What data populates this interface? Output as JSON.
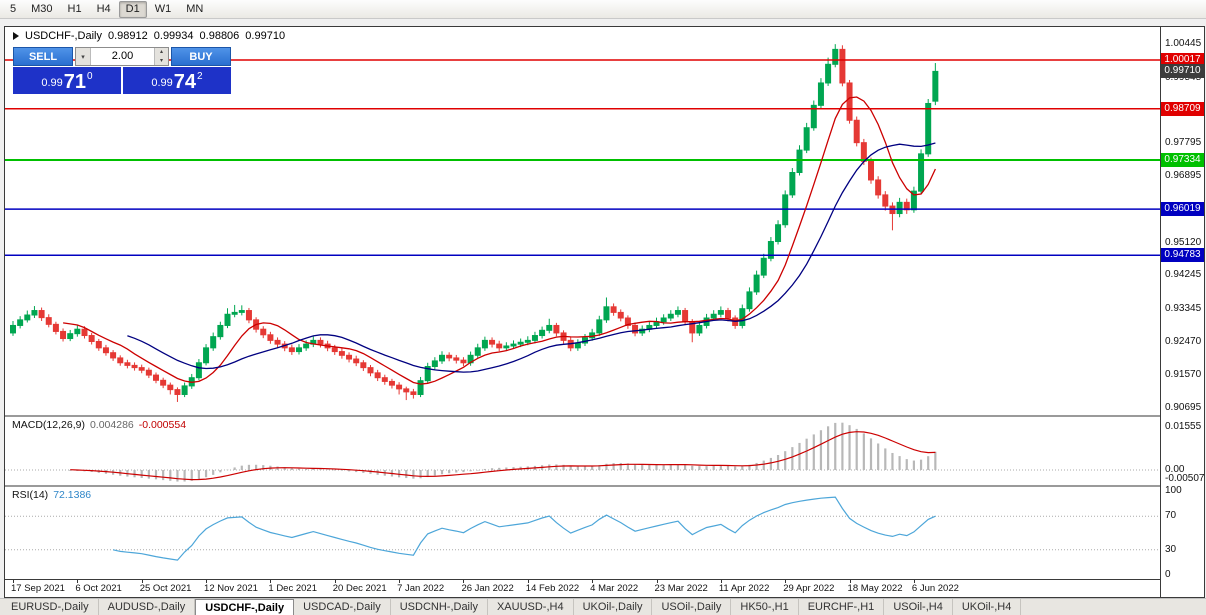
{
  "toolbar": {
    "timeframes": [
      {
        "label": "5",
        "active": false
      },
      {
        "label": "M30",
        "active": false
      },
      {
        "label": "H1",
        "active": false
      },
      {
        "label": "H4",
        "active": false
      },
      {
        "label": "D1",
        "active": true
      },
      {
        "label": "W1",
        "active": false
      },
      {
        "label": "MN",
        "active": false
      }
    ]
  },
  "chart": {
    "title": {
      "symbol": "USDCHF-,Daily",
      "o": "0.98912",
      "h": "0.99934",
      "l": "0.98806",
      "c": "0.99710"
    }
  },
  "trade_panel": {
    "sell_label": "SELL",
    "buy_label": "BUY",
    "volume": "2.00",
    "bid": {
      "prefix": "0.99",
      "pips": "71",
      "point": "0"
    },
    "ask": {
      "prefix": "0.99",
      "pips": "74",
      "point": "2"
    }
  },
  "price_axis": {
    "scale_labels": [
      "1.00445",
      "0.99545",
      "0.98645",
      "0.97795",
      "0.96895",
      "0.95995",
      "0.95120",
      "0.94245",
      "0.93345",
      "0.92470",
      "0.91570",
      "0.90695"
    ],
    "tags": [
      {
        "text": "1.00017",
        "bg": "#E00000",
        "line": true,
        "lw": 1.5
      },
      {
        "text": "0.99710",
        "bg": "#3C3C3C",
        "line": false,
        "lw": 0
      },
      {
        "text": "0.98709",
        "bg": "#E00000",
        "line": true,
        "lw": 1.5
      },
      {
        "text": "0.97334",
        "bg": "#00C000",
        "line": true,
        "lw": 2
      },
      {
        "text": "0.96019",
        "bg": "#0000C0",
        "line": true,
        "lw": 1.5
      },
      {
        "text": "0.94783",
        "bg": "#0000C0",
        "line": true,
        "lw": 1.5
      }
    ]
  },
  "macd_panel": {
    "name": "MACD(12,26,9)",
    "main_value": "0.004286",
    "signal_value": "-0.000554",
    "axis": [
      "0.01555",
      "0.00",
      "-0.00507"
    ]
  },
  "rsi_panel": {
    "name": "RSI(14)",
    "value": "72.1386",
    "axis": [
      "100",
      "70",
      "30",
      "0"
    ]
  },
  "time_axis": [
    "17 Sep 2021",
    "6 Oct 2021",
    "25 Oct 2021",
    "12 Nov 2021",
    "1 Dec 2021",
    "20 Dec 2021",
    "7 Jan 2022",
    "26 Jan 2022",
    "14 Feb 2022",
    "4 Mar 2022",
    "23 Mar 2022",
    "11 Apr 2022",
    "29 Apr 2022",
    "18 May 2022",
    "6 Jun 2022"
  ],
  "tabs": [
    {
      "label": "EURUSD-,Daily",
      "active": false
    },
    {
      "label": "AUDUSD-,Daily",
      "active": false
    },
    {
      "label": "USDCHF-,Daily",
      "active": true
    },
    {
      "label": "USDCAD-,Daily",
      "active": false
    },
    {
      "label": "USDCNH-,Daily",
      "active": false
    },
    {
      "label": "XAUUSD-,H4",
      "active": false
    },
    {
      "label": "UKOil-,Daily",
      "active": false
    },
    {
      "label": "USOil-,Daily",
      "active": false
    },
    {
      "label": "HK50-,H1",
      "active": false
    },
    {
      "label": "EURCHF-,H1",
      "active": false
    },
    {
      "label": "USOil-,H4",
      "active": false
    },
    {
      "label": "UKOil-,H4",
      "active": false
    }
  ],
  "chart_data": {
    "type": "candlestick",
    "symbol": "USDCHF",
    "period": "Daily",
    "current_ohlc": {
      "open": 0.98912,
      "high": 0.99934,
      "low": 0.98806,
      "close": 0.9971
    },
    "price_range": [
      0.905,
      1.009
    ],
    "colors": {
      "up": "#00A651",
      "down": "#E53935",
      "ma_fast": "#CC0000",
      "ma_slow": "#000080",
      "macd_hist": "#B8B8B8",
      "macd_signal": "#CC0000",
      "rsi": "#4DA6D9",
      "grid_dots": "#AAAAAA"
    },
    "ma": [
      {
        "period": 8,
        "color": "#CC0000"
      },
      {
        "period": 17,
        "color": "#000080"
      }
    ],
    "macd": {
      "fast": 12,
      "slow": 26,
      "signal": 9
    },
    "rsi": {
      "period": 14,
      "levels": [
        70,
        30
      ],
      "range": [
        0,
        100
      ]
    },
    "label_every_n_candles": 9,
    "candles": [
      [
        0.927,
        0.9302,
        0.9262,
        0.929
      ],
      [
        0.929,
        0.9315,
        0.9282,
        0.9305
      ],
      [
        0.9305,
        0.933,
        0.9298,
        0.9318
      ],
      [
        0.9318,
        0.9342,
        0.931,
        0.933
      ],
      [
        0.933,
        0.9338,
        0.9302,
        0.9311
      ],
      [
        0.9311,
        0.932,
        0.9285,
        0.9293
      ],
      [
        0.9293,
        0.93,
        0.9266,
        0.9274
      ],
      [
        0.9274,
        0.9282,
        0.9247,
        0.9255
      ],
      [
        0.9255,
        0.9278,
        0.9248,
        0.9268
      ],
      [
        0.9268,
        0.9292,
        0.926,
        0.928
      ],
      [
        0.928,
        0.9288,
        0.9255,
        0.9263
      ],
      [
        0.9263,
        0.927,
        0.9239,
        0.9247
      ],
      [
        0.9247,
        0.9254,
        0.9222,
        0.923
      ],
      [
        0.923,
        0.9238,
        0.9209,
        0.9217
      ],
      [
        0.9217,
        0.9224,
        0.9195,
        0.9203
      ],
      [
        0.9203,
        0.921,
        0.9182,
        0.919
      ],
      [
        0.919,
        0.9198,
        0.9175,
        0.9183
      ],
      [
        0.9183,
        0.9191,
        0.9169,
        0.9177
      ],
      [
        0.9177,
        0.9185,
        0.9162,
        0.917
      ],
      [
        0.917,
        0.9177,
        0.9149,
        0.9157
      ],
      [
        0.9157,
        0.9164,
        0.9135,
        0.9143
      ],
      [
        0.9143,
        0.915,
        0.9122,
        0.913
      ],
      [
        0.913,
        0.9137,
        0.9105,
        0.9118
      ],
      [
        0.9118,
        0.9124,
        0.9085,
        0.9105
      ],
      [
        0.9105,
        0.9137,
        0.9098,
        0.9128
      ],
      [
        0.9128,
        0.916,
        0.912,
        0.915
      ],
      [
        0.915,
        0.92,
        0.9143,
        0.919
      ],
      [
        0.919,
        0.924,
        0.9183,
        0.923
      ],
      [
        0.923,
        0.9271,
        0.9222,
        0.926
      ],
      [
        0.926,
        0.93,
        0.9252,
        0.929
      ],
      [
        0.929,
        0.9336,
        0.9283,
        0.932
      ],
      [
        0.932,
        0.9345,
        0.9312,
        0.9325
      ],
      [
        0.9325,
        0.9344,
        0.9317,
        0.933
      ],
      [
        0.933,
        0.9337,
        0.9296,
        0.9305
      ],
      [
        0.9305,
        0.9312,
        0.9271,
        0.928
      ],
      [
        0.928,
        0.9288,
        0.9256,
        0.9265
      ],
      [
        0.9265,
        0.9273,
        0.9241,
        0.925
      ],
      [
        0.925,
        0.9258,
        0.9231,
        0.924
      ],
      [
        0.924,
        0.9248,
        0.9221,
        0.923
      ],
      [
        0.923,
        0.9239,
        0.9211,
        0.922
      ],
      [
        0.922,
        0.924,
        0.9212,
        0.923
      ],
      [
        0.923,
        0.925,
        0.9222,
        0.924
      ],
      [
        0.924,
        0.9261,
        0.9232,
        0.925
      ],
      [
        0.925,
        0.9258,
        0.9231,
        0.924
      ],
      [
        0.924,
        0.9249,
        0.9221,
        0.923
      ],
      [
        0.923,
        0.9238,
        0.9211,
        0.922
      ],
      [
        0.922,
        0.9229,
        0.9201,
        0.921
      ],
      [
        0.921,
        0.9218,
        0.9191,
        0.92
      ],
      [
        0.92,
        0.9209,
        0.9181,
        0.919
      ],
      [
        0.919,
        0.9197,
        0.9168,
        0.9177
      ],
      [
        0.9177,
        0.9184,
        0.9154,
        0.9163
      ],
      [
        0.9163,
        0.9171,
        0.9141,
        0.915
      ],
      [
        0.915,
        0.9158,
        0.9131,
        0.914
      ],
      [
        0.914,
        0.9147,
        0.9121,
        0.913
      ],
      [
        0.913,
        0.9138,
        0.9105,
        0.912
      ],
      [
        0.912,
        0.9126,
        0.909,
        0.9112
      ],
      [
        0.9112,
        0.912,
        0.9094,
        0.9105
      ],
      [
        0.9105,
        0.9152,
        0.9098,
        0.9142
      ],
      [
        0.9142,
        0.919,
        0.9135,
        0.918
      ],
      [
        0.918,
        0.9205,
        0.9172,
        0.9195
      ],
      [
        0.9195,
        0.9221,
        0.9187,
        0.921
      ],
      [
        0.921,
        0.9218,
        0.9194,
        0.9203
      ],
      [
        0.9203,
        0.9211,
        0.9188,
        0.9197
      ],
      [
        0.9197,
        0.9205,
        0.9181,
        0.919
      ],
      [
        0.919,
        0.922,
        0.9182,
        0.921
      ],
      [
        0.921,
        0.9241,
        0.9202,
        0.923
      ],
      [
        0.923,
        0.926,
        0.9222,
        0.925
      ],
      [
        0.925,
        0.9258,
        0.9231,
        0.924
      ],
      [
        0.924,
        0.9249,
        0.9221,
        0.923
      ],
      [
        0.923,
        0.9245,
        0.9222,
        0.9235
      ],
      [
        0.9235,
        0.925,
        0.9227,
        0.924
      ],
      [
        0.924,
        0.9255,
        0.9232,
        0.9245
      ],
      [
        0.9245,
        0.9261,
        0.9237,
        0.925
      ],
      [
        0.925,
        0.9273,
        0.9242,
        0.9263
      ],
      [
        0.9263,
        0.9287,
        0.9255,
        0.9277
      ],
      [
        0.9277,
        0.9308,
        0.9269,
        0.929
      ],
      [
        0.929,
        0.9297,
        0.9261,
        0.927
      ],
      [
        0.927,
        0.9277,
        0.9241,
        0.925
      ],
      [
        0.925,
        0.9258,
        0.9221,
        0.923
      ],
      [
        0.923,
        0.9253,
        0.9222,
        0.9243
      ],
      [
        0.9243,
        0.9267,
        0.9235,
        0.9257
      ],
      [
        0.9257,
        0.9281,
        0.9249,
        0.927
      ],
      [
        0.927,
        0.9316,
        0.9262,
        0.9305
      ],
      [
        0.9305,
        0.9365,
        0.9297,
        0.934
      ],
      [
        0.934,
        0.9349,
        0.9316,
        0.9325
      ],
      [
        0.9325,
        0.9333,
        0.9301,
        0.931
      ],
      [
        0.931,
        0.9317,
        0.9281,
        0.929
      ],
      [
        0.929,
        0.9298,
        0.9261,
        0.927
      ],
      [
        0.927,
        0.929,
        0.9262,
        0.928
      ],
      [
        0.928,
        0.93,
        0.9272,
        0.929
      ],
      [
        0.929,
        0.9311,
        0.9282,
        0.93
      ],
      [
        0.93,
        0.932,
        0.9292,
        0.931
      ],
      [
        0.931,
        0.9331,
        0.9302,
        0.932
      ],
      [
        0.932,
        0.9341,
        0.9312,
        0.933
      ],
      [
        0.933,
        0.9337,
        0.9291,
        0.93
      ],
      [
        0.93,
        0.9307,
        0.9245,
        0.927
      ],
      [
        0.927,
        0.93,
        0.9262,
        0.929
      ],
      [
        0.929,
        0.9321,
        0.9282,
        0.931
      ],
      [
        0.931,
        0.9331,
        0.9302,
        0.932
      ],
      [
        0.932,
        0.9341,
        0.9312,
        0.933
      ],
      [
        0.933,
        0.9337,
        0.9301,
        0.931
      ],
      [
        0.931,
        0.9317,
        0.9281,
        0.929
      ],
      [
        0.929,
        0.9346,
        0.9282,
        0.9335
      ],
      [
        0.9335,
        0.9392,
        0.9327,
        0.938
      ],
      [
        0.938,
        0.9437,
        0.9372,
        0.9425
      ],
      [
        0.9425,
        0.9482,
        0.9417,
        0.947
      ],
      [
        0.947,
        0.9527,
        0.9462,
        0.9515
      ],
      [
        0.9515,
        0.9572,
        0.9507,
        0.956
      ],
      [
        0.956,
        0.9652,
        0.9552,
        0.964
      ],
      [
        0.964,
        0.9712,
        0.9632,
        0.97
      ],
      [
        0.97,
        0.9773,
        0.9692,
        0.976
      ],
      [
        0.976,
        0.9833,
        0.9752,
        0.982
      ],
      [
        0.982,
        0.9893,
        0.9812,
        0.988
      ],
      [
        0.988,
        0.9953,
        0.9872,
        0.994
      ],
      [
        0.994,
        1.0008,
        0.9932,
        0.999
      ],
      [
        0.999,
        1.0044,
        0.9982,
        1.003
      ],
      [
        1.003,
        1.0041,
        0.9931,
        0.994
      ],
      [
        0.994,
        0.9948,
        0.9831,
        0.984
      ],
      [
        0.984,
        0.985,
        0.977,
        0.978
      ],
      [
        0.978,
        0.979,
        0.972,
        0.973
      ],
      [
        0.973,
        0.974,
        0.967,
        0.968
      ],
      [
        0.968,
        0.969,
        0.963,
        0.964
      ],
      [
        0.964,
        0.965,
        0.9598,
        0.961
      ],
      [
        0.961,
        0.962,
        0.9545,
        0.959
      ],
      [
        0.959,
        0.9632,
        0.958,
        0.962
      ],
      [
        0.962,
        0.963,
        0.9589,
        0.96
      ],
      [
        0.96,
        0.9662,
        0.9592,
        0.965
      ],
      [
        0.965,
        0.9762,
        0.9642,
        0.975
      ],
      [
        0.975,
        0.9897,
        0.9742,
        0.9885
      ],
      [
        0.98912,
        0.99934,
        0.98806,
        0.9971
      ]
    ]
  }
}
